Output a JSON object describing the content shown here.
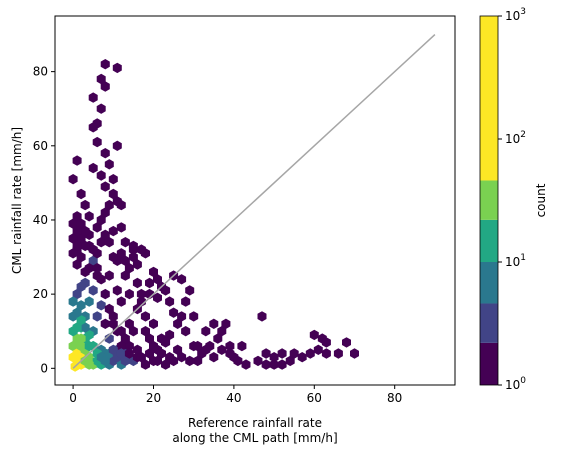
{
  "chart_data": {
    "type": "heatmap",
    "subtype": "hexbin",
    "xlabel_line1": "Reference rainfall rate",
    "xlabel_line2": "along the CML path [mm/h]",
    "ylabel": "CML rainfall rate [mm/h]",
    "xlim": [
      -4.5,
      95
    ],
    "ylim": [
      -4.5,
      95
    ],
    "x_ticks": [
      0,
      20,
      40,
      60,
      80
    ],
    "y_ticks": [
      0,
      20,
      40,
      60,
      80
    ],
    "grid": false,
    "reference_line": {
      "x": [
        0,
        90
      ],
      "y": [
        0,
        90
      ],
      "color": "#a6a6a6"
    },
    "colorbar": {
      "label": "count",
      "scale": "log",
      "ticks": [
        {
          "value": 1,
          "base": "10",
          "exp": "0"
        },
        {
          "value": 10,
          "base": "10",
          "exp": "1"
        },
        {
          "value": 100,
          "base": "10",
          "exp": "2"
        },
        {
          "value": 1000,
          "base": "10",
          "exp": "3"
        }
      ],
      "bins": [
        {
          "from": 1,
          "to": 2.2,
          "color": "#440154"
        },
        {
          "from": 2.2,
          "to": 4.6,
          "color": "#414487"
        },
        {
          "from": 4.6,
          "to": 10,
          "color": "#2a788e"
        },
        {
          "from": 10,
          "to": 22,
          "color": "#22a884"
        },
        {
          "from": 22,
          "to": 46,
          "color": "#7ad151"
        },
        {
          "from": 46,
          "to": 1000,
          "color": "#fde725"
        }
      ]
    },
    "points": [
      [
        0.5,
        0.5,
        300
      ],
      [
        1,
        2,
        180
      ],
      [
        2,
        1,
        120
      ],
      [
        2,
        4,
        60
      ],
      [
        1,
        6,
        40
      ],
      [
        1,
        8,
        30
      ],
      [
        3,
        8,
        15
      ],
      [
        2,
        11,
        20
      ],
      [
        4,
        3,
        25
      ],
      [
        5,
        1,
        30
      ],
      [
        6,
        2,
        12
      ],
      [
        7,
        1,
        10
      ],
      [
        9,
        1,
        8
      ],
      [
        10,
        2,
        4
      ],
      [
        12,
        1,
        5
      ],
      [
        3,
        14,
        8
      ],
      [
        5,
        6,
        12
      ],
      [
        5,
        10,
        6
      ],
      [
        6,
        14,
        4
      ],
      [
        7,
        5,
        5
      ],
      [
        8,
        4,
        6
      ],
      [
        9,
        8,
        3
      ],
      [
        11,
        5,
        3
      ],
      [
        13,
        4,
        4
      ],
      [
        15,
        2,
        3
      ],
      [
        4,
        18,
        5
      ],
      [
        5,
        21,
        3
      ],
      [
        6,
        25,
        2
      ],
      [
        5,
        29,
        3
      ],
      [
        4,
        33,
        2
      ],
      [
        3,
        23,
        4
      ],
      [
        2,
        17,
        6
      ],
      [
        7,
        17,
        3
      ],
      [
        8,
        12,
        2
      ],
      [
        10,
        14,
        2
      ],
      [
        12,
        10,
        2
      ],
      [
        14,
        6,
        2
      ],
      [
        16,
        3,
        2
      ],
      [
        18,
        1,
        2
      ],
      [
        20,
        2,
        1
      ],
      [
        22,
        4,
        1
      ],
      [
        24,
        3,
        1
      ],
      [
        26,
        5,
        1
      ],
      [
        1,
        28,
        2
      ],
      [
        2,
        30,
        1
      ],
      [
        3,
        33,
        1
      ],
      [
        1,
        32,
        1
      ],
      [
        2,
        35,
        1
      ],
      [
        4,
        36,
        1
      ],
      [
        6,
        38,
        1
      ],
      [
        7,
        40,
        1
      ],
      [
        8,
        42,
        1
      ],
      [
        9,
        44,
        1
      ],
      [
        11,
        45,
        1
      ],
      [
        12,
        44,
        1
      ],
      [
        10,
        47,
        1
      ],
      [
        8,
        49,
        1
      ],
      [
        10,
        37,
        1
      ],
      [
        12,
        38,
        1
      ],
      [
        13,
        34,
        1
      ],
      [
        15,
        32,
        1
      ],
      [
        16,
        28,
        1
      ],
      [
        18,
        31,
        1
      ],
      [
        16,
        23,
        1
      ],
      [
        19,
        20,
        1
      ],
      [
        21,
        19,
        1
      ],
      [
        22,
        22,
        1
      ],
      [
        25,
        25,
        1
      ],
      [
        27,
        24,
        1
      ],
      [
        28,
        18,
        1
      ],
      [
        29,
        21,
        1
      ],
      [
        27,
        14,
        1
      ],
      [
        30,
        14,
        1
      ],
      [
        28,
        10,
        1
      ],
      [
        30,
        6,
        1
      ],
      [
        32,
        4,
        1
      ],
      [
        34,
        6,
        1
      ],
      [
        36,
        8,
        1
      ],
      [
        37,
        10,
        1
      ],
      [
        38,
        12,
        1
      ],
      [
        35,
        12,
        1
      ],
      [
        39,
        6,
        1
      ],
      [
        40,
        3,
        1
      ],
      [
        43,
        1,
        1
      ],
      [
        46,
        2,
        1
      ],
      [
        48,
        1,
        1
      ],
      [
        50,
        1,
        1
      ],
      [
        52,
        1,
        1
      ],
      [
        54,
        2,
        1
      ],
      [
        55,
        4,
        1
      ],
      [
        57,
        3,
        1
      ],
      [
        59,
        4,
        1
      ],
      [
        61,
        5,
        1
      ],
      [
        63,
        4,
        1
      ],
      [
        68,
        7,
        1
      ],
      [
        70,
        4,
        1
      ],
      [
        66,
        4,
        1
      ],
      [
        60,
        9,
        1
      ],
      [
        62,
        8,
        1
      ],
      [
        63,
        7,
        1
      ],
      [
        48,
        4,
        1
      ],
      [
        50,
        3,
        1
      ],
      [
        52,
        4,
        1
      ],
      [
        47,
        14,
        1
      ],
      [
        42,
        6,
        1
      ],
      [
        33,
        10,
        1
      ],
      [
        31,
        2,
        1
      ],
      [
        20,
        6,
        1
      ],
      [
        22,
        8,
        1
      ],
      [
        20,
        12,
        1
      ],
      [
        18,
        14,
        1
      ],
      [
        17,
        18,
        1
      ],
      [
        14,
        12,
        1
      ],
      [
        12,
        18,
        1
      ],
      [
        11,
        21,
        1
      ],
      [
        9,
        25,
        1
      ],
      [
        11,
        29,
        1
      ],
      [
        13,
        25,
        1
      ],
      [
        8,
        58,
        1
      ],
      [
        9,
        55,
        1
      ],
      [
        11,
        60,
        1
      ],
      [
        10,
        51,
        1
      ],
      [
        6,
        61,
        1
      ],
      [
        7,
        52,
        1
      ],
      [
        5,
        54,
        1
      ],
      [
        6,
        66,
        1
      ],
      [
        7,
        70,
        1
      ],
      [
        5,
        73,
        1
      ],
      [
        11,
        81,
        1
      ],
      [
        7,
        78,
        1
      ],
      [
        8,
        82,
        1
      ],
      [
        8,
        76,
        1
      ],
      [
        5,
        65,
        1
      ],
      [
        0,
        51,
        1
      ],
      [
        1,
        56,
        1
      ],
      [
        2,
        47,
        1
      ],
      [
        3,
        44,
        1
      ],
      [
        4,
        41,
        1
      ],
      [
        0,
        39,
        1
      ],
      [
        1,
        41,
        1
      ],
      [
        2,
        39,
        1
      ],
      [
        3,
        37,
        1
      ],
      [
        0,
        35,
        1
      ],
      [
        1,
        37,
        1
      ],
      [
        0,
        31,
        1
      ],
      [
        1,
        33,
        1
      ],
      [
        4,
        27,
        2
      ],
      [
        6,
        31,
        2
      ],
      [
        7,
        34,
        2
      ],
      [
        8,
        36,
        1
      ],
      [
        9,
        34,
        1
      ],
      [
        10,
        30,
        1
      ],
      [
        12,
        31,
        1
      ],
      [
        13,
        29,
        1
      ],
      [
        14,
        27,
        1
      ],
      [
        15,
        30,
        1
      ],
      [
        15,
        33,
        1
      ],
      [
        17,
        32,
        1
      ],
      [
        14,
        20,
        1
      ],
      [
        16,
        16,
        1
      ],
      [
        18,
        10,
        1
      ],
      [
        19,
        8,
        1
      ],
      [
        21,
        5,
        1
      ],
      [
        23,
        7,
        1
      ],
      [
        24,
        9,
        1
      ],
      [
        26,
        12,
        1
      ],
      [
        25,
        15,
        1
      ],
      [
        24,
        18,
        1
      ],
      [
        23,
        21,
        1
      ],
      [
        21,
        24,
        1
      ],
      [
        20,
        26,
        1
      ],
      [
        19,
        23,
        1
      ],
      [
        17,
        20,
        1
      ],
      [
        15,
        10,
        1
      ],
      [
        13,
        8,
        1
      ],
      [
        12,
        6,
        1
      ],
      [
        11,
        10,
        1
      ],
      [
        10,
        12,
        1
      ],
      [
        9,
        16,
        1
      ],
      [
        8,
        20,
        1
      ],
      [
        7,
        24,
        1
      ],
      [
        6,
        27,
        1
      ],
      [
        5,
        32,
        1
      ],
      [
        3,
        26,
        2
      ],
      [
        2,
        22,
        3
      ],
      [
        1,
        20,
        4
      ],
      [
        0,
        18,
        5
      ],
      [
        0,
        14,
        8
      ],
      [
        0,
        10,
        15
      ],
      [
        0,
        6,
        30
      ],
      [
        0,
        3,
        60
      ],
      [
        1,
        4,
        70
      ],
      [
        2,
        6,
        35
      ],
      [
        3,
        5,
        28
      ],
      [
        4,
        6,
        16
      ],
      [
        4,
        9,
        10
      ],
      [
        3,
        11,
        9
      ],
      [
        2,
        13,
        10
      ],
      [
        1,
        15,
        7
      ],
      [
        1,
        11,
        18
      ],
      [
        2,
        8,
        25
      ],
      [
        3,
        2,
        40
      ],
      [
        4,
        1,
        30
      ],
      [
        6,
        4,
        10
      ],
      [
        7,
        3,
        9
      ],
      [
        8,
        2,
        8
      ],
      [
        9,
        4,
        6
      ],
      [
        10,
        5,
        4
      ],
      [
        11,
        3,
        3
      ],
      [
        12,
        4,
        3
      ],
      [
        13,
        2,
        3
      ],
      [
        14,
        4,
        2
      ],
      [
        16,
        5,
        2
      ],
      [
        17,
        3,
        2
      ],
      [
        19,
        4,
        1
      ],
      [
        21,
        2,
        1
      ],
      [
        23,
        1,
        1
      ],
      [
        25,
        2,
        1
      ],
      [
        27,
        3,
        1
      ],
      [
        29,
        2,
        1
      ],
      [
        31,
        6,
        1
      ],
      [
        33,
        5,
        1
      ],
      [
        35,
        3,
        1
      ],
      [
        37,
        5,
        1
      ],
      [
        39,
        4,
        1
      ],
      [
        41,
        2,
        1
      ]
    ]
  }
}
